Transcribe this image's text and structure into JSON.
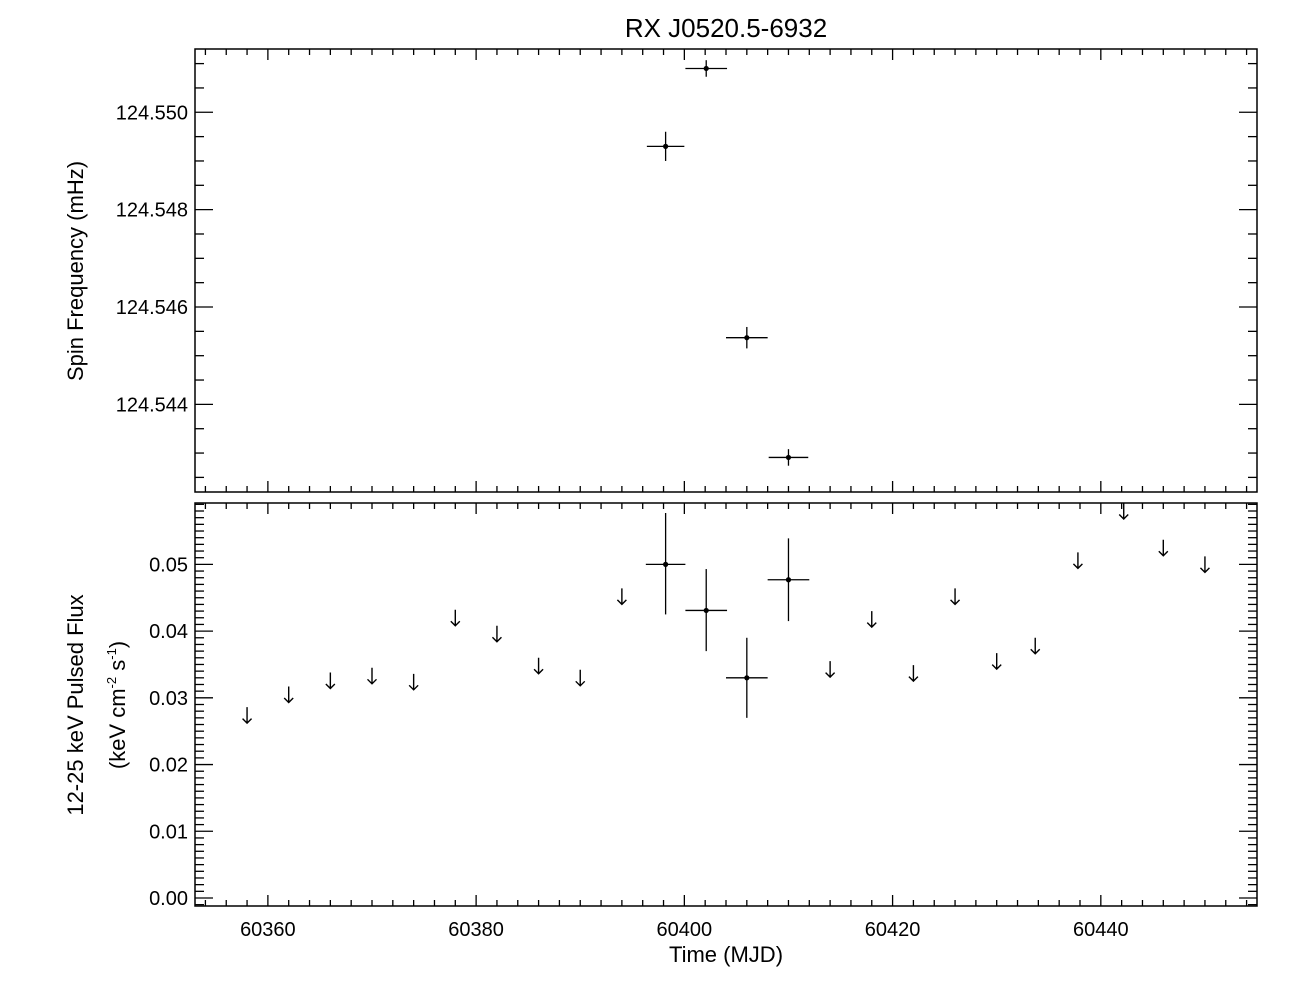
{
  "chart_data": [
    {
      "type": "scatter",
      "panel": "top",
      "title": "RX J0520.5-6932",
      "ylabel": "Spin Frequency (mHz)",
      "xlabel": "",
      "xlim": [
        60353,
        60455
      ],
      "ylim": [
        124.5422,
        124.5513
      ],
      "yticks": [
        124.544,
        124.546,
        124.548,
        124.55
      ],
      "ytick_labels": [
        "124.544",
        "124.546",
        "124.548",
        "124.550"
      ],
      "grid": false,
      "series": [
        {
          "points": [
            {
              "x": 60398.2,
              "y": 124.5493,
              "xerr": 1.8,
              "yerr": 0.0003
            },
            {
              "x": 60402.1,
              "y": 124.5509,
              "xerr": 2.0,
              "yerr": 0.00017
            },
            {
              "x": 60406.0,
              "y": 124.54537,
              "xerr": 2.0,
              "yerr": 0.00022
            },
            {
              "x": 60410.0,
              "y": 124.54291,
              "xerr": 1.9,
              "yerr": 0.00017
            }
          ]
        }
      ]
    },
    {
      "type": "scatter",
      "panel": "bottom",
      "ylabel_line1": "12-25 keV Pulsed Flux",
      "ylabel_line2_pre": "(keV cm",
      "ylabel_line2_sup1": "-2",
      "ylabel_line2_mid": " s",
      "ylabel_line2_sup2": "-1",
      "ylabel_line2_post": ")",
      "xlabel": "Time (MJD)",
      "xlim": [
        60353,
        60455
      ],
      "ylim": [
        -0.0012,
        0.0592
      ],
      "xticks": [
        60360,
        60380,
        60400,
        60420,
        60440
      ],
      "xtick_labels": [
        "60360",
        "60380",
        "60400",
        "60420",
        "60440"
      ],
      "yticks": [
        0.0,
        0.01,
        0.02,
        0.03,
        0.04,
        0.05
      ],
      "ytick_labels": [
        "0.00",
        "0.01",
        "0.02",
        "0.03",
        "0.04",
        "0.05"
      ],
      "grid": false,
      "detections": [
        {
          "x": 60398.2,
          "y": 0.05,
          "xerr": 1.9,
          "ylo": 0.0425,
          "yhi": 0.0577
        },
        {
          "x": 60402.1,
          "y": 0.0431,
          "xerr": 2.0,
          "ylo": 0.037,
          "yhi": 0.0493
        },
        {
          "x": 60406.0,
          "y": 0.033,
          "xerr": 2.0,
          "ylo": 0.027,
          "yhi": 0.039
        },
        {
          "x": 60410.0,
          "y": 0.0477,
          "xerr": 2.0,
          "ylo": 0.0415,
          "yhi": 0.0539
        }
      ],
      "upper_limits": [
        {
          "x": 60358.0,
          "y": 0.0274
        },
        {
          "x": 60362.0,
          "y": 0.0305
        },
        {
          "x": 60366.0,
          "y": 0.0326
        },
        {
          "x": 60370.0,
          "y": 0.0333
        },
        {
          "x": 60374.0,
          "y": 0.0324
        },
        {
          "x": 60378.0,
          "y": 0.042
        },
        {
          "x": 60382.0,
          "y": 0.0396
        },
        {
          "x": 60386.0,
          "y": 0.0348
        },
        {
          "x": 60390.0,
          "y": 0.033
        },
        {
          "x": 60394.0,
          "y": 0.0452
        },
        {
          "x": 60414.0,
          "y": 0.0343
        },
        {
          "x": 60418.0,
          "y": 0.0418
        },
        {
          "x": 60422.0,
          "y": 0.0337
        },
        {
          "x": 60426.0,
          "y": 0.0452
        },
        {
          "x": 60430.0,
          "y": 0.0355
        },
        {
          "x": 60433.7,
          "y": 0.0378
        },
        {
          "x": 60437.8,
          "y": 0.0506
        },
        {
          "x": 60442.2,
          "y": 0.058
        },
        {
          "x": 60446.0,
          "y": 0.0525
        },
        {
          "x": 60450.0,
          "y": 0.05
        }
      ]
    }
  ]
}
